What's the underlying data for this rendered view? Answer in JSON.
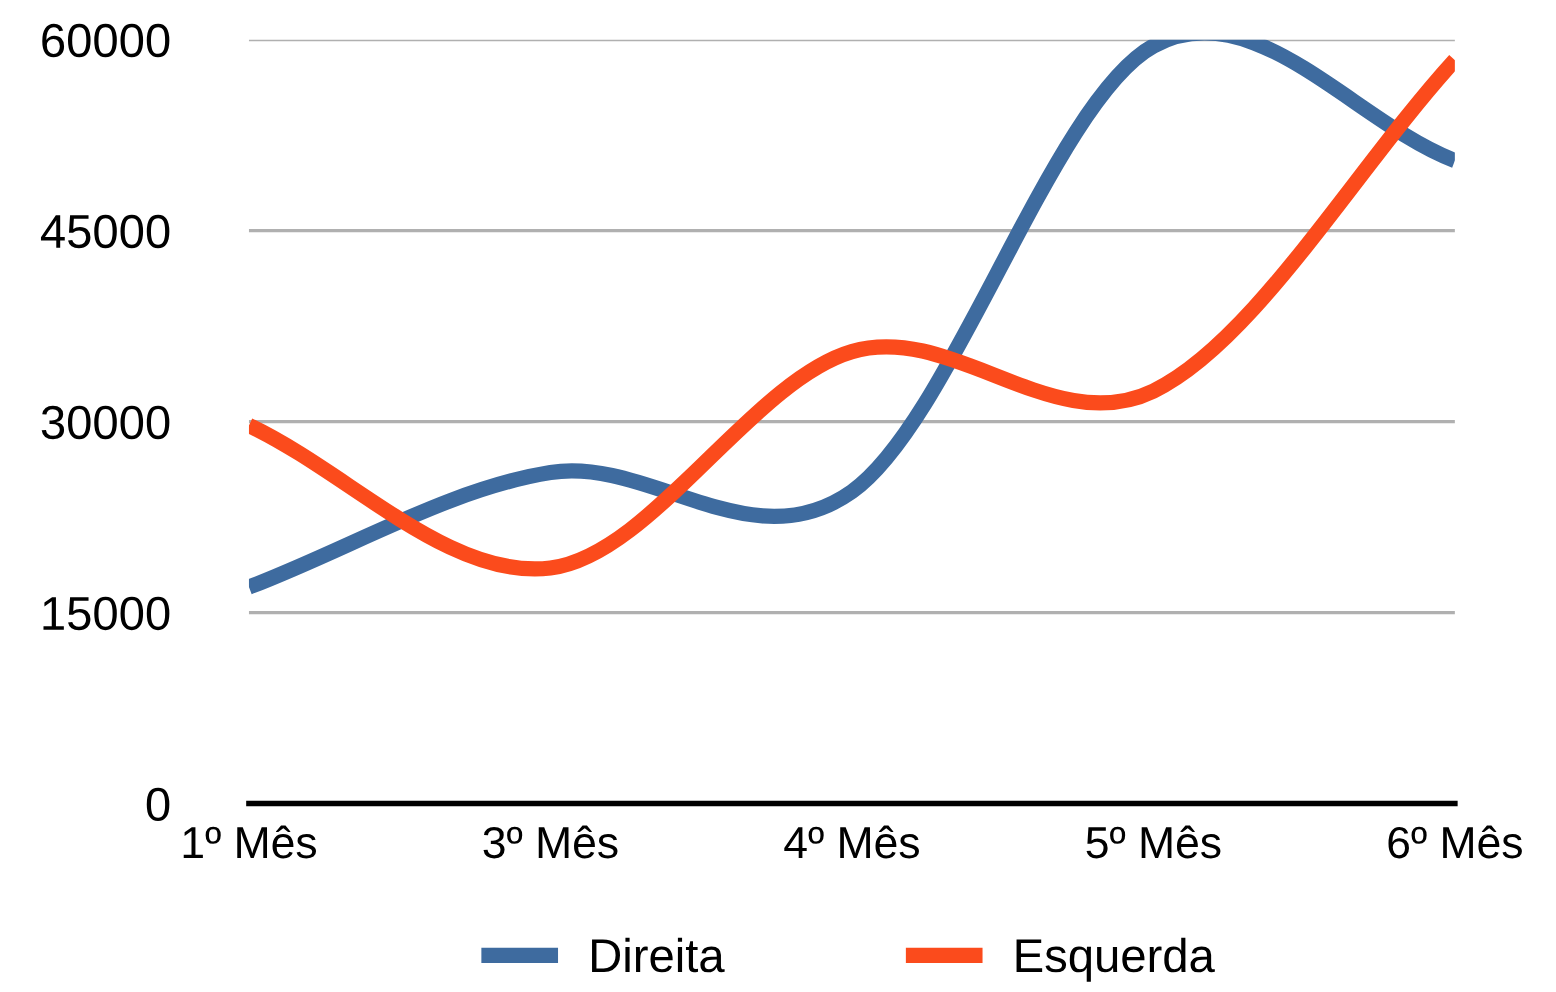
{
  "chart_data": {
    "type": "line",
    "categories": [
      "1º Mês",
      "3º Mês",
      "4º Mês",
      "5º Mês",
      "6º Mês"
    ],
    "series": [
      {
        "name": "Direita",
        "color": "#3e6b9f",
        "values": [
          17000,
          26000,
          24500,
          59500,
          50500
        ]
      },
      {
        "name": "Esquerda",
        "color": "#fb4b1c",
        "values": [
          29700,
          18500,
          35500,
          32400,
          58400
        ]
      }
    ],
    "ylim": [
      0,
      60000
    ],
    "yticks": [
      0,
      15000,
      30000,
      45000,
      60000
    ],
    "grid": "y",
    "legend": "bottom",
    "marker": "none",
    "line_style": "solid"
  }
}
